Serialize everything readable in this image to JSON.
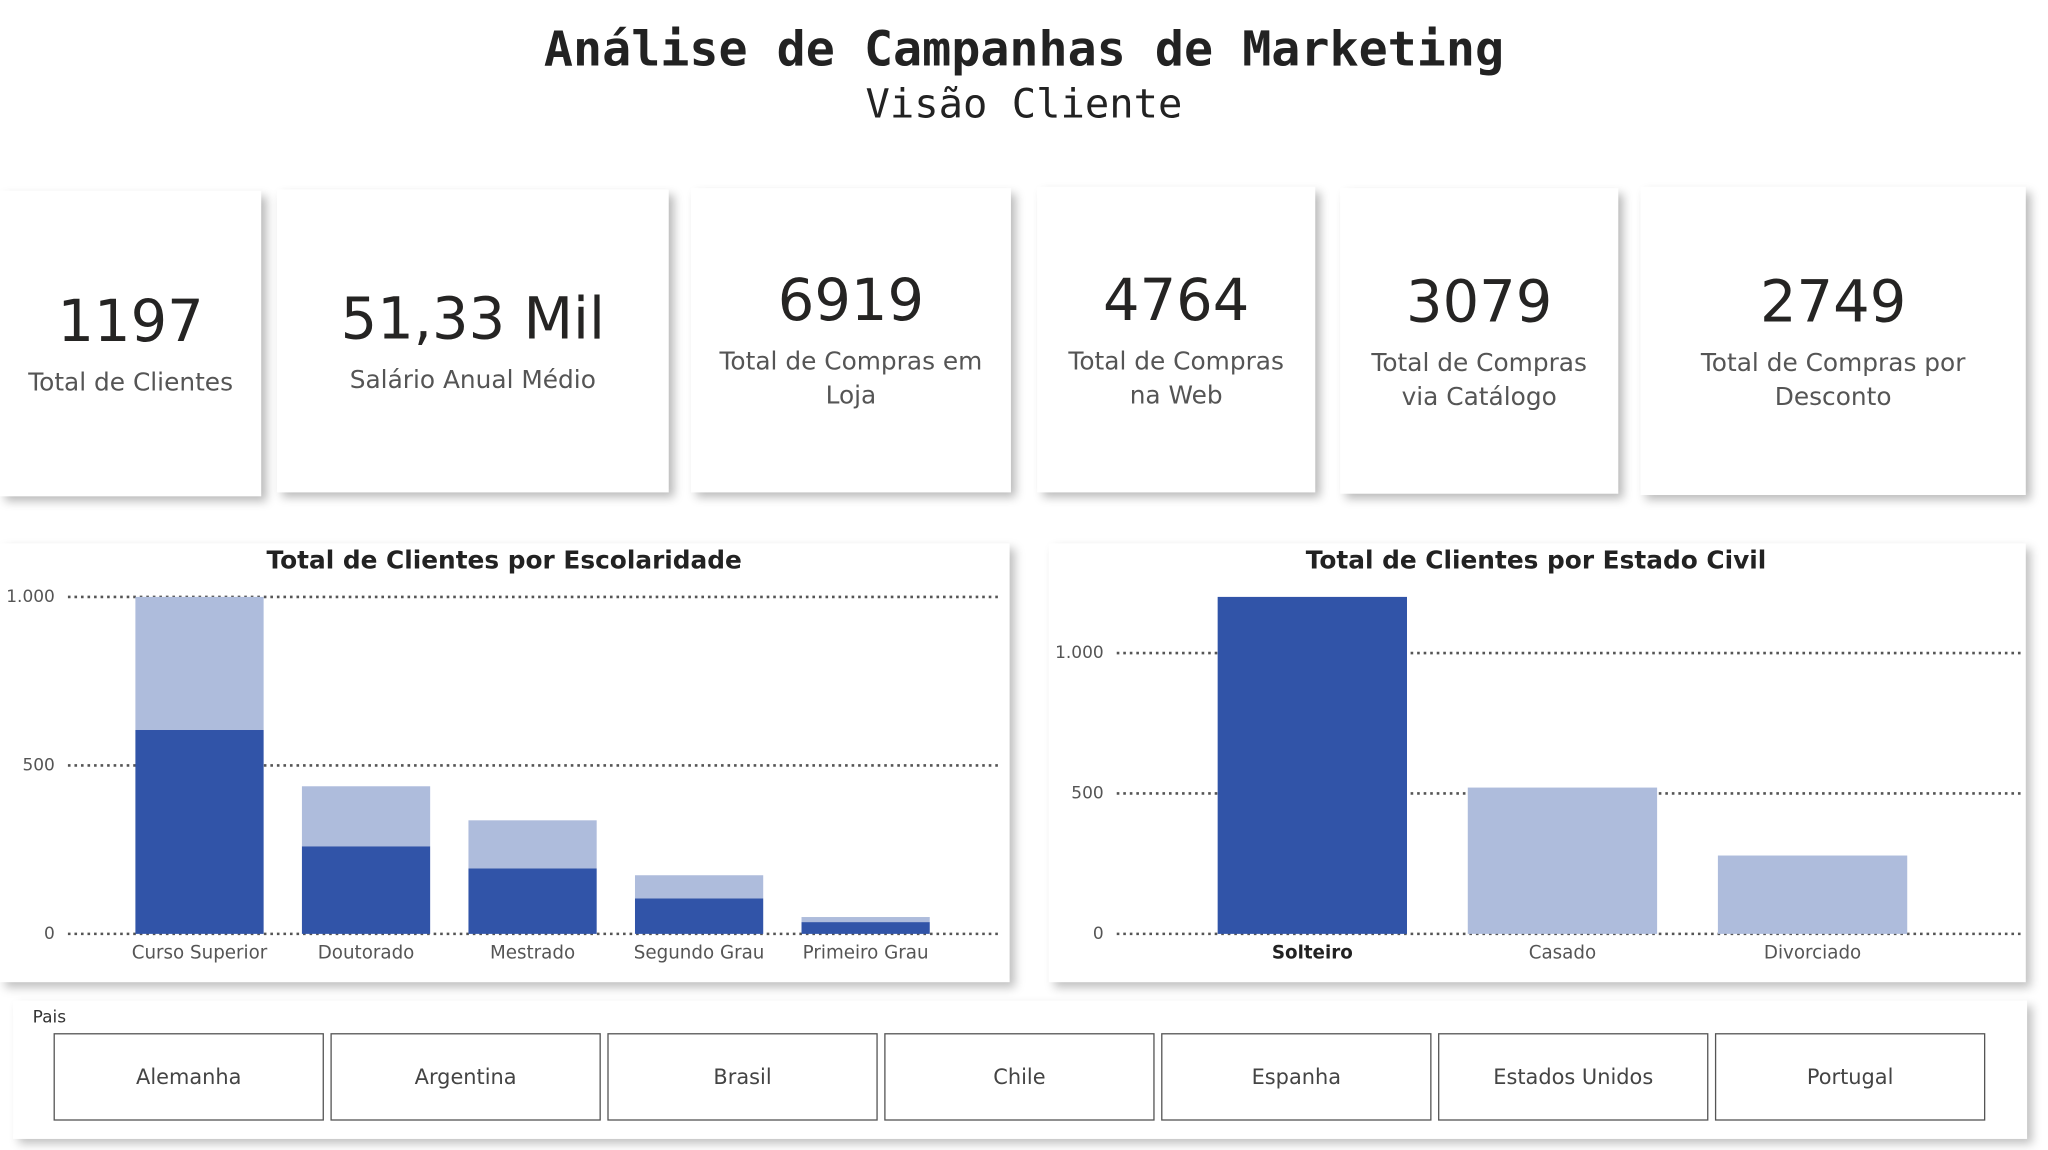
{
  "header": {
    "title": "Análise de Campanhas de Marketing",
    "subtitle": "Visão Cliente"
  },
  "kpis": [
    {
      "value": "1197",
      "label": "Total de Clientes"
    },
    {
      "value": "51,33 Mil",
      "label": "Salário Anual Médio"
    },
    {
      "value": "6919",
      "label": "Total de Compras em Loja"
    },
    {
      "value": "4764",
      "label": "Total de Compras na Web"
    },
    {
      "value": "3079",
      "label": "Total de Compras via Catálogo"
    },
    {
      "value": "2749",
      "label": "Total de Compras por Desconto"
    }
  ],
  "chart_data": [
    {
      "type": "bar",
      "stacked": true,
      "title": "Total de Clientes por Escolaridade",
      "categories": [
        "Curso Superior",
        "Doutorado",
        "Mestrado",
        "Segundo Grau",
        "Primeiro Grau"
      ],
      "series": [
        {
          "color": "#3154a8",
          "values": [
            605,
            260,
            194,
            105,
            35
          ]
        },
        {
          "color": "#aebcdc",
          "values": [
            395,
            178,
            143,
            69,
            15
          ]
        }
      ],
      "ylim": [
        0,
        1000
      ],
      "yticks": [
        0,
        500,
        {
          "value": 1000,
          "label": "1.000"
        }
      ],
      "grid": true
    },
    {
      "type": "bar",
      "title": "Total de Clientes por Estado Civil",
      "categories": [
        "Solteiro",
        "Casado",
        "Divorciado"
      ],
      "values": [
        1200,
        521,
        279
      ],
      "colors": [
        "#3154a8",
        "#aebcdc",
        "#aebcdc"
      ],
      "highlight": 0,
      "ylim": [
        0,
        1200
      ],
      "yticks": [
        0,
        500,
        {
          "value": 1000,
          "label": "1.000"
        }
      ],
      "grid": true
    }
  ],
  "slicer": {
    "title": "Pais",
    "options": [
      "Alemanha",
      "Argentina",
      "Brasil",
      "Chile",
      "Espanha",
      "Estados Unidos",
      "Portugal"
    ]
  }
}
